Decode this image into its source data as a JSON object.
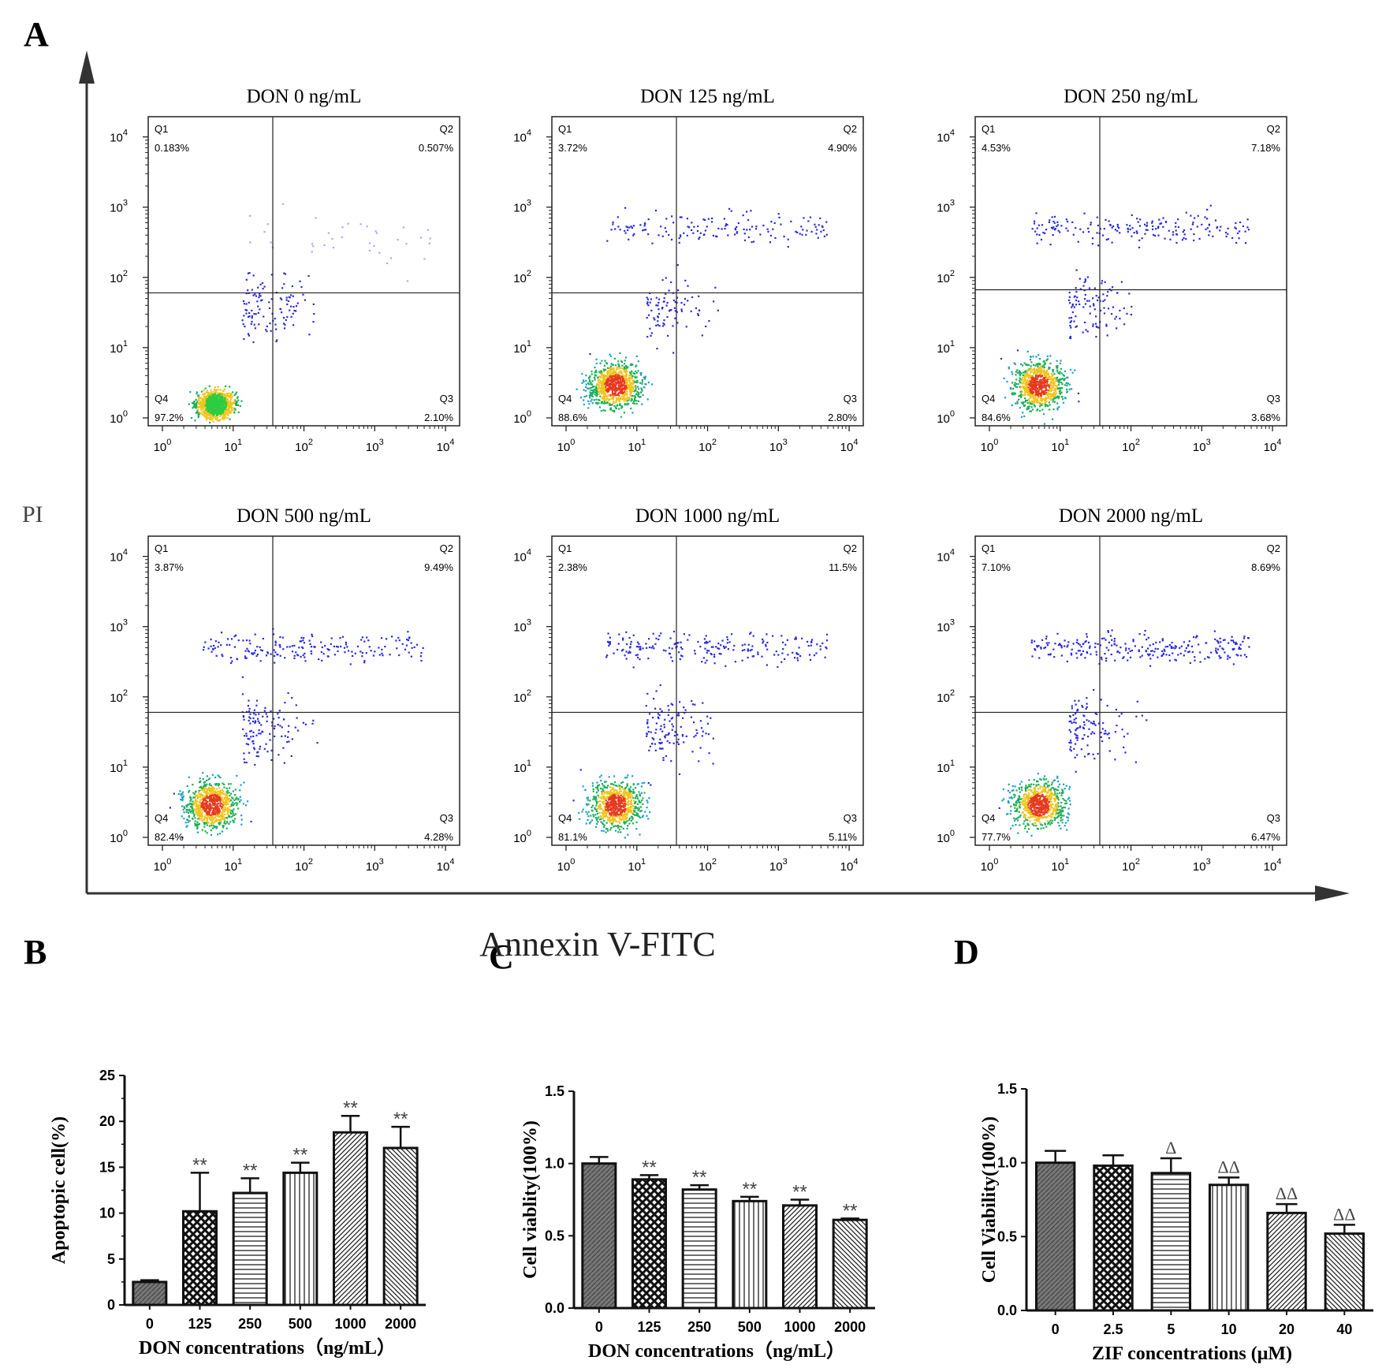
{
  "panel_letters": {
    "a": "A",
    "b": "B",
    "c": "C",
    "d": "D"
  },
  "panel_a": {
    "y_axis_label": "PI",
    "x_axis_label": "Annexin V-FITC",
    "tick_exponents": [
      "0",
      "1",
      "2",
      "3",
      "4"
    ],
    "tick_base": "10",
    "quadrant_names": [
      "Q1",
      "Q2",
      "Q3",
      "Q4"
    ],
    "plots": [
      {
        "title": "DON 0 ng/mL",
        "q1": "0.183%",
        "q2": "0.507%",
        "q3": "2.10%",
        "q4": "97.2%"
      },
      {
        "title": "DON 125 ng/mL",
        "q1": "3.72%",
        "q2": "4.90%",
        "q3": "2.80%",
        "q4": "88.6%"
      },
      {
        "title": "DON 250 ng/mL",
        "q1": "4.53%",
        "q2": "7.18%",
        "q3": "3.68%",
        "q4": "84.6%"
      },
      {
        "title": "DON 500 ng/mL",
        "q1": "3.87%",
        "q2": "9.49%",
        "q3": "4.28%",
        "q4": "82.4%"
      },
      {
        "title": "DON 1000 ng/mL",
        "q1": "2.38%",
        "q2": "11.5%",
        "q3": "5.11%",
        "q4": "81.1%"
      },
      {
        "title": "DON 2000 ng/mL",
        "q1": "7.10%",
        "q2": "8.69%",
        "q3": "6.47%",
        "q4": "77.7%"
      }
    ]
  },
  "chart_data": [
    {
      "type": "bar",
      "panel": "B",
      "categories": [
        "0",
        "125",
        "250",
        "500",
        "1000",
        "2000"
      ],
      "values": [
        2.5,
        10.2,
        12.2,
        14.4,
        18.8,
        17.1
      ],
      "errors": [
        0.2,
        4.2,
        1.6,
        1.1,
        1.8,
        2.3
      ],
      "significance": [
        "",
        "**",
        "**",
        "**",
        "**",
        "**"
      ],
      "xlabel": "DON concentrations（ng/mL）",
      "ylabel": "Apoptopic cell(%)",
      "ylim": [
        0,
        25
      ],
      "yticks": [
        "0",
        "5",
        "10",
        "15",
        "20",
        "25"
      ]
    },
    {
      "type": "bar",
      "panel": "C",
      "categories": [
        "0",
        "125",
        "250",
        "500",
        "1000",
        "2000"
      ],
      "values": [
        1.0,
        0.89,
        0.82,
        0.74,
        0.71,
        0.61
      ],
      "errors": [
        0.045,
        0.03,
        0.03,
        0.03,
        0.04,
        0.01
      ],
      "significance": [
        "",
        "**",
        "**",
        "**",
        "**",
        "**"
      ],
      "xlabel": "DON concentrations（ng/mL）",
      "ylabel": "Cell viablity(100%)",
      "ylim": [
        0,
        1.5
      ],
      "yticks": [
        "0.0",
        "0.5",
        "1.0",
        "1.5"
      ]
    },
    {
      "type": "bar",
      "panel": "D",
      "categories": [
        "0",
        "2.5",
        "5",
        "10",
        "20",
        "40"
      ],
      "values": [
        1.0,
        0.98,
        0.93,
        0.85,
        0.66,
        0.52
      ],
      "errors": [
        0.08,
        0.07,
        0.1,
        0.05,
        0.06,
        0.06
      ],
      "significance": [
        "",
        "",
        "Δ",
        "ΔΔ",
        "ΔΔ",
        "ΔΔ"
      ],
      "xlabel": "ZIF concentrations (μM)",
      "ylabel": "Cell Viability(100%)",
      "ylim": [
        0,
        1.5
      ],
      "yticks": [
        "0.0",
        "0.5",
        "1.0",
        "1.5"
      ]
    }
  ]
}
